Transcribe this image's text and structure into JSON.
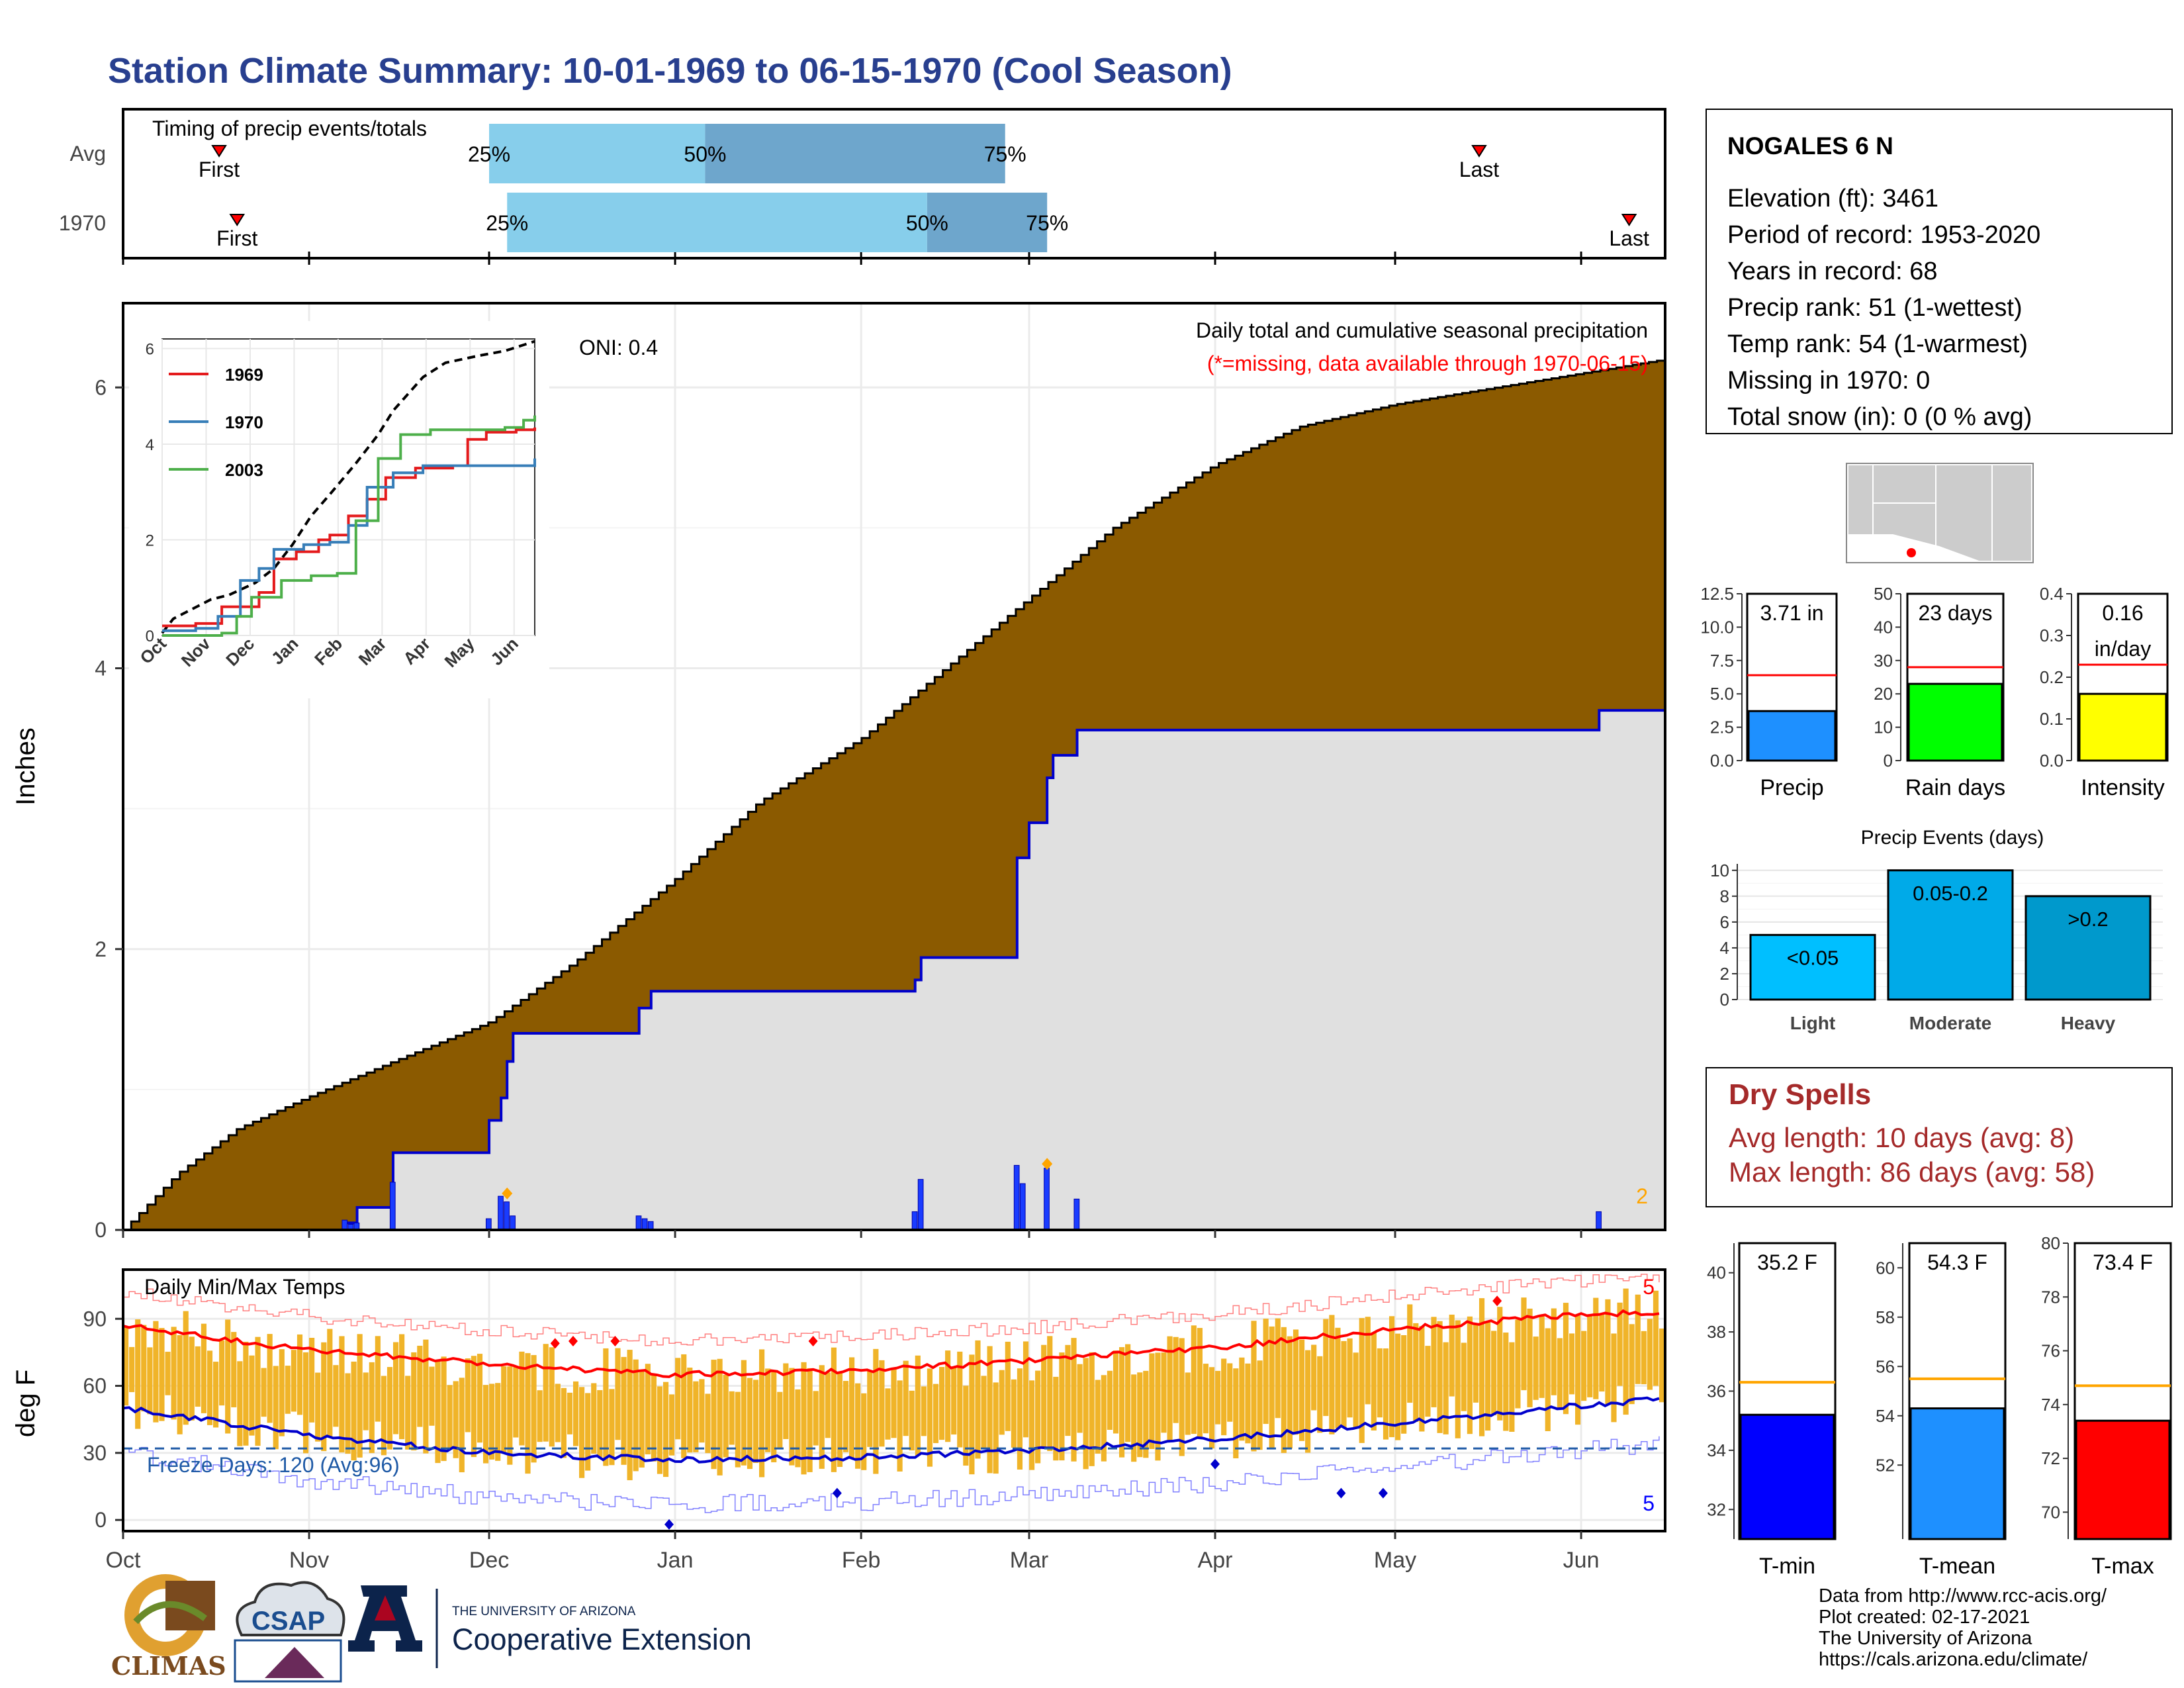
{
  "title": "Station Climate Summary: 10-01-1969 to 06-15-1970 (Cool Season)",
  "timing": {
    "label": "Timing of precip events/totals",
    "rows": [
      "Avg",
      "1970"
    ],
    "first_label": "First",
    "last_label": "Last",
    "pct_labels": [
      "25%",
      "50%",
      "75%"
    ],
    "avg": {
      "first": "1969-10-17",
      "p25": "1969-12-01",
      "p50": "1970-01-06",
      "p75": "1970-02-25",
      "last": "1970-05-15"
    },
    "y1970": {
      "first": "1969-10-20",
      "p25": "1969-12-04",
      "p50": "1970-02-12",
      "p75": "1970-03-04",
      "last": "1970-06-09"
    },
    "colors": {
      "light": "#87ceeb",
      "dark": "#6ea6cc",
      "marker": "#ff0000"
    }
  },
  "station": {
    "name": "NOGALES 6 N",
    "lines": [
      "Elevation (ft): 3461",
      "Period of record: 1953-2020",
      "Years in record: 68",
      "Precip rank: 51 (1-wettest)",
      "Temp rank: 54 (1-warmest)",
      "Missing in 1970: 0",
      "Total snow (in): 0 (0 % avg)"
    ]
  },
  "precip_panel": {
    "ylabel": "Inches",
    "oni": "ONI: 0.4",
    "title": "Daily total and cumulative seasonal precipitation",
    "subtitle": "(*=missing, data available through 1970-06-15)",
    "count_label": "2",
    "colors": {
      "avg_fill": "#8b5a00",
      "year_fill": "#e0e0e0",
      "year_line": "#0000cc",
      "bars": "#1a3cff",
      "marker": "#ffa500",
      "subtitle": "#ff0000",
      "count": "#ffa500"
    }
  },
  "inset": {
    "series": [
      {
        "name": "1969",
        "color": "#e41a1c"
      },
      {
        "name": "1970",
        "color": "#377eb8"
      },
      {
        "name": "2003",
        "color": "#4daf4a"
      }
    ],
    "months": [
      "Oct",
      "Nov",
      "Dec",
      "Jan",
      "Feb",
      "Mar",
      "Apr",
      "May",
      "Jun"
    ],
    "yticks": [
      "0",
      "2",
      "4",
      "6"
    ]
  },
  "temp_panel": {
    "ylabel": "deg F",
    "title": "Daily Min/Max Temps",
    "freeze": "Freeze Days: 120 (Avg:96)",
    "max_count": "5",
    "min_count": "5",
    "colors": {
      "bars": "#f0b429",
      "max_avg": "#ff0000",
      "min_avg": "#0000cc",
      "freeze": "#1f5aa6"
    }
  },
  "side_bars": {
    "precip": {
      "label": "Precip",
      "value_text": "3.71 in",
      "value": 3.71,
      "avg": 6.4,
      "ymax": 12.5,
      "yticks": [
        "0.0",
        "2.5",
        "5.0",
        "7.5",
        "10.0",
        "12.5"
      ],
      "color": "#1e90ff"
    },
    "rain_days": {
      "label": "Rain days",
      "value_text": "23 days",
      "value": 23,
      "avg": 28,
      "ymax": 50,
      "yticks": [
        "0",
        "10",
        "20",
        "30",
        "40",
        "50"
      ],
      "color": "#00ff00"
    },
    "intensity": {
      "label": "Intensity",
      "value_text": "0.16",
      "value_text2": "in/day",
      "value": 0.16,
      "avg": 0.23,
      "ymax": 0.4,
      "yticks": [
        "0.0",
        "0.1",
        "0.2",
        "0.3",
        "0.4"
      ],
      "color": "#ffff00"
    }
  },
  "events": {
    "title": "Precip Events (days)",
    "categories": [
      "Light",
      "Moderate",
      "Heavy"
    ],
    "labels": [
      "<0.05",
      "0.05-0.2",
      ">0.2"
    ],
    "values": [
      5,
      10,
      8
    ],
    "colors": [
      "#00bfff",
      "#00aae8",
      "#0099cc"
    ],
    "yticks": [
      "0",
      "2",
      "4",
      "6",
      "8",
      "10"
    ]
  },
  "dry_spells": {
    "title": "Dry Spells",
    "line1": "Avg length: 10 days (avg: 8)",
    "line2": "Max length: 86 days (avg: 58)",
    "color": "#a52a2a"
  },
  "temp_bars": {
    "tmin": {
      "label": "T-min",
      "value_text": "35.2 F",
      "value": 35.2,
      "avg": 36.3,
      "ylim": [
        31,
        41
      ],
      "yticks": [
        "32",
        "34",
        "36",
        "38",
        "40"
      ],
      "color": "#0000ff"
    },
    "tmean": {
      "label": "T-mean",
      "value_text": "54.3 F",
      "value": 54.3,
      "avg": 55.5,
      "ylim": [
        49,
        61
      ],
      "yticks": [
        "52",
        "54",
        "56",
        "58",
        "60"
      ],
      "color": "#1e90ff"
    },
    "tmax": {
      "label": "T-max",
      "value_text": "73.4 F",
      "value": 73.4,
      "avg": 74.7,
      "ylim": [
        69,
        80
      ],
      "yticks": [
        "70",
        "72",
        "74",
        "76",
        "78",
        "80"
      ],
      "color": "#ff0000"
    }
  },
  "credits": [
    "Data from http://www.rcc-acis.org/",
    "Plot created: 02-17-2021",
    "The University of Arizona",
    "https://cals.arizona.edu/climate/"
  ],
  "logos": {
    "climas": "CLIMAS",
    "csap": "CSAP",
    "ua_small": "THE UNIVERSITY OF ARIZONA",
    "ua_big": "Cooperative Extension"
  },
  "chart_data": [
    {
      "type": "area",
      "title": "Daily total and cumulative seasonal precipitation",
      "ylabel": "Inches",
      "ylim": [
        0,
        6.6
      ],
      "yticks": [
        0,
        2,
        4,
        6
      ],
      "x_months": [
        "Oct",
        "Nov",
        "Dec",
        "Jan",
        "Feb",
        "Mar",
        "Apr",
        "May",
        "Jun"
      ],
      "avg_cumulative": {
        "dates": [
          "1969-10-01",
          "1969-10-10",
          "1969-10-20",
          "1969-11-01",
          "1969-11-15",
          "1969-12-01",
          "1969-12-15",
          "1970-01-01",
          "1970-01-15",
          "1970-02-01",
          "1970-02-15",
          "1970-03-01",
          "1970-03-15",
          "1970-04-01",
          "1970-04-15",
          "1970-05-01",
          "1970-05-15",
          "1970-06-01",
          "1970-06-15"
        ],
        "values": [
          0.0,
          0.4,
          0.72,
          0.95,
          1.2,
          1.48,
          1.9,
          2.5,
          3.05,
          3.5,
          4.0,
          4.5,
          5.0,
          5.45,
          5.72,
          5.88,
          5.98,
          6.1,
          6.2
        ]
      },
      "series": [
        {
          "name": "1970 cumulative",
          "dates": [
            "1969-10-01",
            "1969-11-07",
            "1969-11-09",
            "1969-11-15",
            "1969-12-01",
            "1969-12-03",
            "1969-12-04",
            "1969-12-05",
            "1969-12-26",
            "1969-12-28",
            "1970-02-10",
            "1970-02-11",
            "1970-02-27",
            "1970-03-01",
            "1970-03-04",
            "1970-03-05",
            "1970-03-09",
            "1970-06-04",
            "1970-06-15"
          ],
          "values": [
            0.0,
            0.05,
            0.16,
            0.55,
            0.78,
            0.94,
            1.2,
            1.4,
            1.58,
            1.7,
            1.78,
            1.94,
            2.65,
            2.9,
            3.22,
            3.38,
            3.56,
            3.7,
            3.7
          ]
        }
      ],
      "daily_bars": {
        "dates": [
          "1969-11-07",
          "1969-11-08",
          "1969-11-09",
          "1969-11-15",
          "1969-12-01",
          "1969-12-03",
          "1969-12-04",
          "1969-12-05",
          "1969-12-26",
          "1969-12-27",
          "1969-12-28",
          "1970-02-10",
          "1970-02-11",
          "1970-02-27",
          "1970-02-28",
          "1970-03-04",
          "1970-03-09",
          "1970-06-04"
        ],
        "values": [
          0.07,
          0.04,
          0.05,
          0.34,
          0.08,
          0.24,
          0.2,
          0.1,
          0.1,
          0.08,
          0.06,
          0.13,
          0.36,
          0.46,
          0.33,
          0.44,
          0.22,
          0.13
        ]
      }
    },
    {
      "type": "line",
      "title": "Daily Min/Max Temps",
      "ylabel": "deg F",
      "ylim": [
        -5,
        112
      ],
      "yticks": [
        0,
        30,
        60,
        90
      ],
      "freeze_line": 32,
      "series": [
        {
          "name": "avg max",
          "dates": [
            "1969-10-01",
            "1969-11-01",
            "1969-12-01",
            "1970-01-01",
            "1970-02-01",
            "1970-03-01",
            "1970-04-01",
            "1970-05-01",
            "1970-06-01",
            "1970-06-15"
          ],
          "values": [
            87,
            76,
            70,
            65,
            67,
            71,
            77,
            85,
            92,
            93
          ]
        },
        {
          "name": "avg min",
          "dates": [
            "1969-10-01",
            "1969-11-01",
            "1969-12-01",
            "1970-01-01",
            "1970-02-01",
            "1970-03-01",
            "1970-04-01",
            "1970-05-01",
            "1970-06-01",
            "1970-06-15"
          ],
          "values": [
            50,
            38,
            30,
            27,
            28,
            31,
            36,
            43,
            51,
            54
          ]
        }
      ]
    },
    {
      "type": "bar",
      "title": "Precip Events (days)",
      "categories": [
        "Light",
        "Moderate",
        "Heavy"
      ],
      "values": [
        5,
        10,
        8
      ],
      "ylim": [
        0,
        11
      ]
    }
  ]
}
